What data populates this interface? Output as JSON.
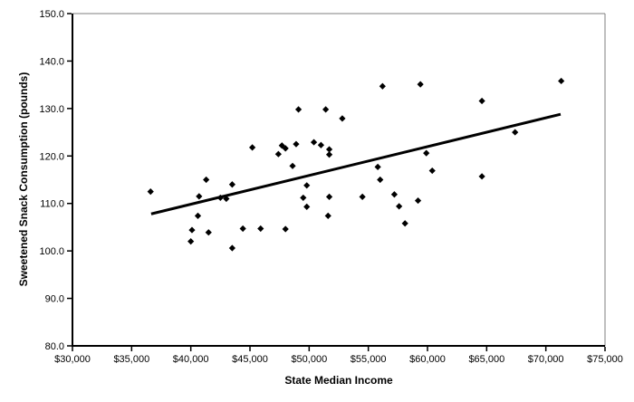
{
  "figure": {
    "background": "#ffffff",
    "frame_light_color": "#7f7f7f",
    "axis_color": "#000000",
    "tick_label_color": "#000000"
  },
  "chart_data": {
    "type": "scatter",
    "title": "",
    "xlabel": "State Median Income",
    "ylabel": "Sweetened Snack Consumption (pounds)",
    "xlim": [
      30000,
      75000
    ],
    "ylim": [
      80,
      150
    ],
    "grid": false,
    "legend": "none",
    "x_ticks": [
      30000,
      35000,
      40000,
      45000,
      50000,
      55000,
      60000,
      65000,
      70000,
      75000
    ],
    "x_tick_labels": [
      "$30,000",
      "$35,000",
      "$40,000",
      "$45,000",
      "$50,000",
      "$55,000",
      "$60,000",
      "$65,000",
      "$70,000",
      "$75,000"
    ],
    "y_ticks": [
      80,
      90,
      100,
      110,
      120,
      130,
      140,
      150
    ],
    "y_tick_labels": [
      "80.0",
      "90.0",
      "100.0",
      "110.0",
      "120.0",
      "130.0",
      "140.0",
      "150.0"
    ],
    "marker": {
      "shape": "diamond",
      "color": "#000000",
      "size": 7
    },
    "trendline": {
      "x1": 36650,
      "y1": 107.8,
      "x2": 71250,
      "y2": 128.8,
      "color": "#000000",
      "width": 3
    },
    "points": [
      [
        36600,
        112.5
      ],
      [
        41300,
        115.0
      ],
      [
        40700,
        111.5
      ],
      [
        43500,
        114.0
      ],
      [
        42500,
        111.2
      ],
      [
        43000,
        111.0
      ],
      [
        40600,
        107.4
      ],
      [
        40100,
        104.4
      ],
      [
        41500,
        103.9
      ],
      [
        40000,
        102.0
      ],
      [
        44400,
        104.7
      ],
      [
        45900,
        104.7
      ],
      [
        48000,
        104.6
      ],
      [
        43500,
        100.6
      ],
      [
        48600,
        117.9
      ],
      [
        49800,
        113.8
      ],
      [
        49500,
        111.2
      ],
      [
        49800,
        109.3
      ],
      [
        51700,
        111.4
      ],
      [
        51600,
        107.4
      ],
      [
        49100,
        129.8
      ],
      [
        51400,
        129.8
      ],
      [
        52800,
        127.9
      ],
      [
        45200,
        121.8
      ],
      [
        47700,
        122.2
      ],
      [
        48000,
        121.6
      ],
      [
        47400,
        120.4
      ],
      [
        48900,
        122.5
      ],
      [
        50400,
        122.9
      ],
      [
        51000,
        122.3
      ],
      [
        51700,
        121.4
      ],
      [
        51700,
        120.3
      ],
      [
        56200,
        134.7
      ],
      [
        59400,
        135.1
      ],
      [
        64600,
        131.6
      ],
      [
        71300,
        135.8
      ],
      [
        67400,
        125.0
      ],
      [
        59900,
        120.6
      ],
      [
        55800,
        117.7
      ],
      [
        60400,
        116.9
      ],
      [
        64600,
        115.7
      ],
      [
        56000,
        115.0
      ],
      [
        54500,
        111.4
      ],
      [
        57200,
        111.9
      ],
      [
        57600,
        109.4
      ],
      [
        59200,
        110.6
      ],
      [
        58100,
        105.8
      ]
    ]
  }
}
